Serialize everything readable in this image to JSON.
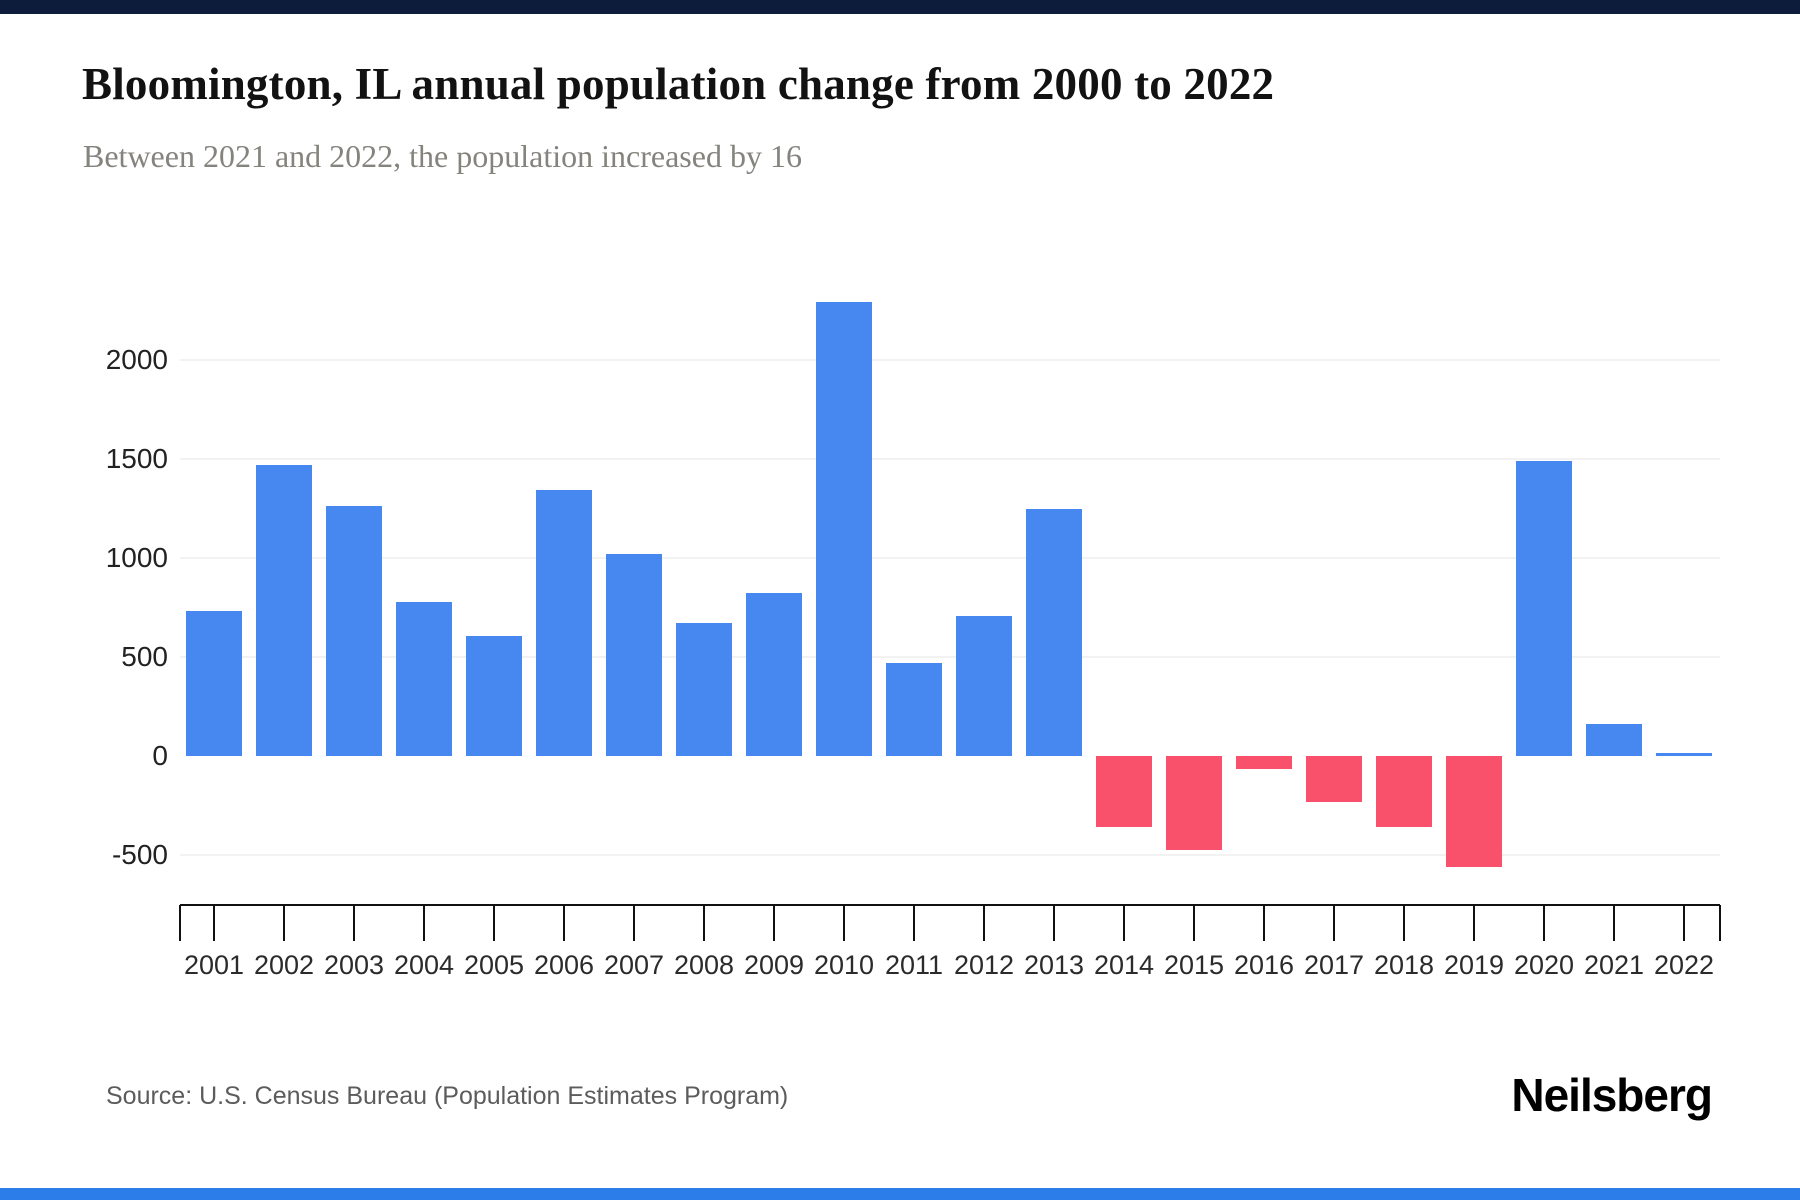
{
  "header": {
    "title": "Bloomington, IL annual population change from 2000 to 2022",
    "subtitle": "Between 2021 and 2022, the population increased by 16"
  },
  "footer": {
    "source": "Source: U.S. Census Bureau (Population Estimates Program)",
    "logo": "Neilsberg"
  },
  "chart_data": {
    "type": "bar",
    "title": "Bloomington, IL annual population change from 2000 to 2022",
    "subtitle": "Between 2021 and 2022, the population increased by 16",
    "categories": [
      "2001",
      "2002",
      "2003",
      "2004",
      "2005",
      "2006",
      "2007",
      "2008",
      "2009",
      "2010",
      "2011",
      "2012",
      "2013",
      "2014",
      "2015",
      "2016",
      "2017",
      "2018",
      "2019",
      "2020",
      "2021",
      "2022"
    ],
    "values": [
      730,
      1470,
      1260,
      775,
      605,
      1340,
      1020,
      670,
      820,
      2290,
      470,
      705,
      1245,
      -360,
      -475,
      -65,
      -230,
      -360,
      -560,
      1490,
      160,
      16
    ],
    "series_label": "Annual population change",
    "xlabel": "",
    "ylabel": "",
    "ylim": [
      -700,
      2550
    ],
    "yticks": [
      2000,
      1500,
      1000,
      500,
      0,
      -500
    ],
    "ytick_labels": [
      "2000",
      "1500",
      "1000",
      "500",
      "0",
      "-500"
    ],
    "grid": "horizontal light gridlines at labeled ticks except 0",
    "legend": "none",
    "colors": {
      "positive_bar": "#4687f0",
      "negative_bar": "#f9516c",
      "gridline": "#f2f2f2",
      "axis": "#111111",
      "top_strip": "#0c1c3a",
      "bottom_strip": "#2c7ce9"
    }
  }
}
